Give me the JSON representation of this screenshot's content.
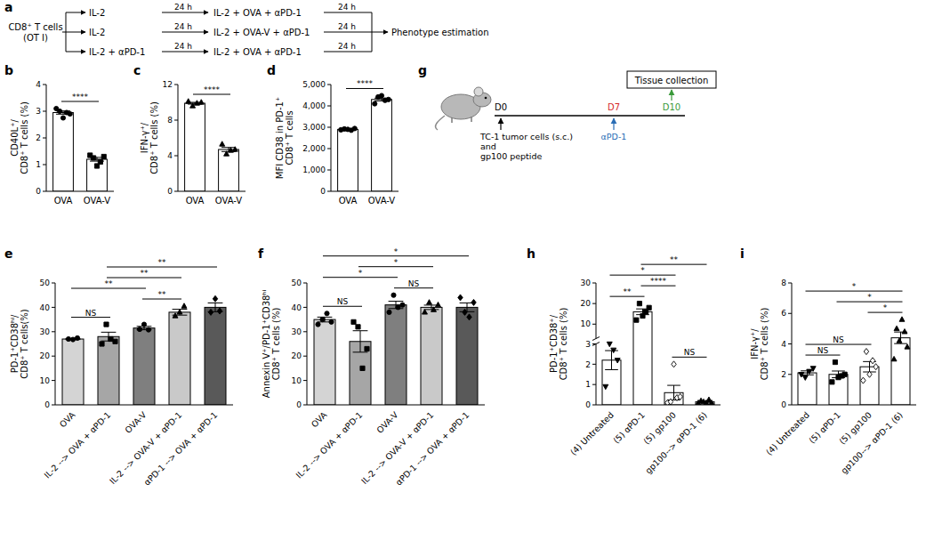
{
  "chart_data": [
    {
      "type": "bar",
      "panel_label": "b",
      "y_label": "CD40L⁺/ CD8⁺ T cells (%)",
      "categories": [
        "OVA",
        "OVA-V"
      ],
      "values": [
        2.95,
        1.2
      ],
      "errors": [
        0.06,
        0.07
      ],
      "points": [
        [
          3.1,
          3.0,
          2.75,
          2.95,
          2.9
        ],
        [
          1.35,
          1.25,
          0.95,
          1.1,
          1.3
        ]
      ],
      "colors": [
        "#ffffff",
        "#ffffff"
      ],
      "ylim": [
        0,
        4
      ],
      "yticks": [
        0,
        1,
        2,
        3,
        4
      ],
      "comparisons": [
        {
          "groups": [
            0,
            1
          ],
          "label": "****"
        }
      ]
    },
    {
      "type": "bar",
      "panel_label": "c",
      "y_label": "IFN-γ⁺/ CD8⁺ T cells (%)",
      "categories": [
        "OVA",
        "OVA-V"
      ],
      "values": [
        9.9,
        4.7
      ],
      "errors": [
        0.1,
        0.23
      ],
      "points": [
        [
          10.1,
          9.6,
          9.9,
          10.0
        ],
        [
          5.3,
          4.2,
          4.6,
          4.7
        ]
      ],
      "colors": [
        "#ffffff",
        "#ffffff"
      ],
      "ylim": [
        0,
        12
      ],
      "yticks": [
        0,
        4,
        8,
        12
      ],
      "comparisons": [
        {
          "groups": [
            0,
            1
          ],
          "label": "****"
        }
      ]
    },
    {
      "type": "bar",
      "panel_label": "d",
      "y_label": "MFI CD38 in PD-1⁺ CD8⁺ T cells",
      "categories": [
        "OVA",
        "OVA-V"
      ],
      "values": [
        2900,
        4300
      ],
      "errors": [
        14,
        65
      ],
      "points": [
        [
          2880,
          2920,
          2900,
          2860,
          2940
        ],
        [
          4100,
          4420,
          4480,
          4260,
          4300
        ]
      ],
      "colors": [
        "#ffffff",
        "#ffffff"
      ],
      "ylim": [
        0,
        5000
      ],
      "yticks": [
        0,
        {
          "value": 1000,
          "label": "1,000"
        },
        {
          "value": 2000,
          "label": "2,000"
        },
        {
          "value": 3000,
          "label": "3,000"
        },
        {
          "value": 4000,
          "label": "4,000"
        },
        {
          "value": 5000,
          "label": "5,000"
        }
      ],
      "comparisons": [
        {
          "groups": [
            0,
            1
          ],
          "label": "****"
        }
      ]
    },
    {
      "type": "bar",
      "panel_label": "e",
      "y_label": "PD-1⁺CD38ʰⁱ/ CD8⁺ T cells(%)",
      "categories": [
        "OVA",
        "IL-2 --> OVA + αPD-1",
        "OVA-V",
        "IL-2 --> OVA-V + αPD-1",
        "αPD-1 --> OVA + αPD-1"
      ],
      "values": [
        27,
        28,
        31.5,
        38,
        40
      ],
      "errors": [
        0.2,
        1.8,
        0.7,
        1.2,
        1.8
      ],
      "points": [
        [
          27,
          26.8,
          27.4
        ],
        [
          25,
          33,
          27,
          26
        ],
        [
          31,
          33,
          30.8
        ],
        [
          36.5,
          38,
          40.5
        ],
        [
          38,
          43.5,
          38.5
        ]
      ],
      "colors": [
        "#d4d4d4",
        "#a6a6a6",
        "#7f7f7f",
        "#c9c9c9",
        "#595959"
      ],
      "ylim": [
        0,
        50
      ],
      "yticks": [
        0,
        10,
        20,
        30,
        40,
        50
      ],
      "comparisons": [
        {
          "groups": [
            0,
            1
          ],
          "label": "NS"
        },
        {
          "groups": [
            2,
            3
          ],
          "label": "**"
        },
        {
          "groups": [
            0,
            2
          ],
          "label": "**"
        },
        {
          "groups": [
            1,
            3
          ],
          "label": "**"
        },
        {
          "groups": [
            1,
            4
          ],
          "label": "**"
        }
      ]
    },
    {
      "type": "bar",
      "panel_label": "f",
      "y_label": "Annexin V⁺/PD-1⁺CD38ʰⁱ CD8⁺ T cells (%)",
      "categories": [
        "OVA",
        "IL-2 --> OVA + αPD-1",
        "OVA-V",
        "IL-2 --> OVA-V + αPD-1",
        "αPD-1 --> OVA + αPD-1"
      ],
      "values": [
        35,
        26,
        41,
        40,
        40
      ],
      "errors": [
        1.0,
        4.4,
        1.5,
        0.9,
        1.8
      ],
      "points": [
        [
          33,
          35,
          37.5,
          34
        ],
        [
          34,
          32,
          15,
          23
        ],
        [
          38,
          45,
          40,
          41
        ],
        [
          38,
          42,
          39,
          41
        ],
        [
          44,
          38,
          36,
          42
        ]
      ],
      "colors": [
        "#d4d4d4",
        "#a6a6a6",
        "#7f7f7f",
        "#c9c9c9",
        "#595959"
      ],
      "ylim": [
        0,
        50
      ],
      "yticks": [
        0,
        10,
        20,
        30,
        40,
        50
      ],
      "comparisons": [
        {
          "groups": [
            0,
            1
          ],
          "label": "NS"
        },
        {
          "groups": [
            2,
            3
          ],
          "label": "NS"
        },
        {
          "groups": [
            0,
            2
          ],
          "label": "*"
        },
        {
          "groups": [
            1,
            3
          ],
          "label": "*"
        },
        {
          "groups": [
            0,
            4
          ],
          "label": "*"
        }
      ]
    },
    {
      "type": "bar",
      "panel_label": "h",
      "y_label": "PD-1⁺CD38⁺/ CD8⁺ T cells (%)",
      "categories": [
        "(4) Untreated",
        "(5) αPD-1",
        "(5) gp100",
        "gp100--> αPD-1 (6)"
      ],
      "values": [
        2.2,
        16,
        0.6,
        0.15
      ],
      "errors": [
        0.47,
        1.4,
        0.36,
        0.03
      ],
      "points": [
        [
          0.9,
          3.0,
          2.7,
          2.2
        ],
        [
          12,
          20,
          14,
          16,
          18
        ],
        [
          0.1,
          0.15,
          2.0,
          0.35,
          0.4
        ],
        [
          0.1,
          0.2,
          0.15,
          0.1,
          0.25,
          0.1
        ]
      ],
      "colors": [
        "#ffffff",
        "#ffffff",
        "#ffffff",
        "#ffffff"
      ],
      "ylim": [
        0,
        30
      ],
      "yticks": [
        0,
        1,
        2,
        3,
        10,
        20,
        30
      ],
      "comparisons": [
        {
          "groups": [
            2,
            3
          ],
          "label": "NS"
        },
        {
          "groups": [
            0,
            1
          ],
          "label": "**"
        },
        {
          "groups": [
            1,
            2
          ],
          "label": "****"
        },
        {
          "groups": [
            0,
            2
          ],
          "label": "*"
        },
        {
          "groups": [
            1,
            3
          ],
          "label": "**"
        }
      ]
    },
    {
      "type": "bar",
      "panel_label": "i",
      "y_label": "IFN-γ⁺/ CD8⁺ T cells (%)",
      "categories": [
        "(4) Untreated",
        "(5) αPD-1",
        "(5) gp100",
        "gp100--> αPD-1 (6)"
      ],
      "values": [
        2.1,
        2.0,
        2.5,
        4.4
      ],
      "errors": [
        0.13,
        0.22,
        0.34,
        0.38
      ],
      "points": [
        [
          2.0,
          1.8,
          2.2,
          2.4
        ],
        [
          1.5,
          2.8,
          1.8,
          1.9,
          2.0
        ],
        [
          1.6,
          3.5,
          2.0,
          2.9,
          2.5
        ],
        [
          3.0,
          5.0,
          4.2,
          5.6,
          4.8,
          3.8
        ]
      ],
      "colors": [
        "#ffffff",
        "#ffffff",
        "#ffffff",
        "#ffffff"
      ],
      "ylim": [
        0,
        8
      ],
      "yticks": [
        0,
        2,
        4,
        6,
        8
      ],
      "comparisons": [
        {
          "groups": [
            0,
            1
          ],
          "label": "NS"
        },
        {
          "groups": [
            0,
            2
          ],
          "label": "NS"
        },
        {
          "groups": [
            2,
            3
          ],
          "label": "*"
        },
        {
          "groups": [
            1,
            3
          ],
          "label": "*"
        },
        {
          "groups": [
            0,
            3
          ],
          "label": "*"
        }
      ]
    }
  ],
  "diagram_a": {
    "panel_label": "a",
    "source": [
      "CD8⁺ T cells",
      "(OT I)"
    ],
    "rows": [
      {
        "pre": "IL-2",
        "wait1": "24 h",
        "treat": "IL-2 + OVA + αPD-1",
        "wait2": "24 h"
      },
      {
        "pre": "IL-2",
        "wait1": "24 h",
        "treat": "IL-2 + OVA-V + αPD-1",
        "wait2": "24 h"
      },
      {
        "pre": "IL-2 + αPD-1",
        "wait1": "24 h",
        "treat": "IL-2 + OVA + αPD-1",
        "wait2": "24 h"
      }
    ],
    "target": "Phenotype estimation"
  },
  "diagram_g": {
    "panel_label": "g",
    "start_label": "D0",
    "mid_label": "D7",
    "end_label": "D10",
    "injection": [
      "TC-1 tumor cells (s.c.)",
      "and",
      "gp100 peptide"
    ],
    "treatment": "αPD-1",
    "endpoint": "Tissue collection"
  }
}
